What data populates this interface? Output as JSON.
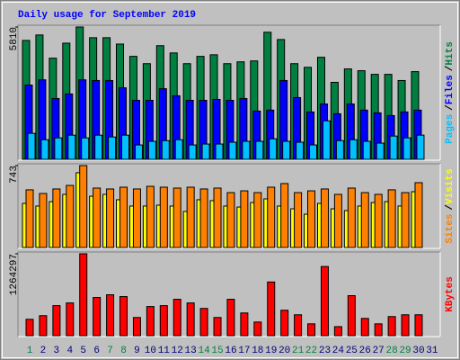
{
  "chart_data": [
    {
      "type": "bar",
      "title": "Daily usage for September 2019",
      "title_color": "#0000ff",
      "ylim": [
        0,
        5810
      ],
      "yticks": [
        5810
      ],
      "legend_separator": "/",
      "series": [
        {
          "name": "Hits",
          "color": "#008040",
          "values": [
            5220,
            5460,
            4440,
            5100,
            5810,
            5340,
            5340,
            5060,
            4520,
            4200,
            4990,
            4670,
            4200,
            4520,
            4590,
            4200,
            4280,
            4320,
            5580,
            5260,
            4200,
            4040,
            4480,
            3380,
            3970,
            3890,
            3730,
            3730,
            3460,
            3850,
            null
          ]
        },
        {
          "name": "Files",
          "color": "#0000ff",
          "values": [
            3260,
            3490,
            2670,
            2870,
            3490,
            3460,
            3460,
            3140,
            2590,
            2590,
            3100,
            2790,
            2590,
            2590,
            2630,
            2590,
            2670,
            2120,
            2160,
            3460,
            2710,
            2080,
            2430,
            2000,
            2430,
            2160,
            2040,
            1920,
            2080,
            2160,
            null
          ]
        },
        {
          "name": "Pages",
          "color": "#00c0ff",
          "values": [
            1140,
            860,
            940,
            1060,
            940,
            1060,
            980,
            1060,
            630,
            790,
            820,
            860,
            630,
            670,
            670,
            750,
            790,
            790,
            900,
            790,
            750,
            630,
            1690,
            820,
            860,
            790,
            710,
            1020,
            940,
            1060,
            null
          ]
        }
      ]
    },
    {
      "type": "bar",
      "ylim": [
        0,
        743
      ],
      "yticks": [
        743
      ],
      "legend_separator": "/",
      "series": [
        {
          "name": "Visits",
          "color": "#ffff00",
          "values": [
            400,
            376,
            416,
            482,
            678,
            465,
            482,
            433,
            376,
            376,
            384,
            376,
            327,
            433,
            425,
            376,
            367,
            408,
            441,
            376,
            351,
            302,
            400,
            351,
            335,
            376,
            408,
            416,
            376,
            506,
            null
          ]
        },
        {
          "name": "Sites",
          "color": "#ff8000",
          "values": [
            523,
            490,
            531,
            563,
            743,
            539,
            531,
            547,
            531,
            555,
            547,
            539,
            547,
            531,
            539,
            498,
            514,
            498,
            547,
            580,
            498,
            514,
            531,
            482,
            539,
            498,
            482,
            523,
            498,
            588,
            null
          ]
        }
      ]
    },
    {
      "type": "bar",
      "ylim": [
        0,
        1264297
      ],
      "yticks": [
        1264297
      ],
      "categories": [
        "1",
        "2",
        "3",
        "4",
        "5",
        "6",
        "7",
        "8",
        "9",
        "10",
        "11",
        "12",
        "13",
        "14",
        "15",
        "16",
        "17",
        "18",
        "19",
        "20",
        "21",
        "22",
        "23",
        "24",
        "25",
        "26",
        "27",
        "28",
        "29",
        "30",
        "31"
      ],
      "category_colors": [
        "#008040",
        "#000080",
        "#000080",
        "#000080",
        "#000080",
        "#000080",
        "#008040",
        "#008040",
        "#000080",
        "#000080",
        "#000080",
        "#000080",
        "#000080",
        "#008040",
        "#008040",
        "#000080",
        "#000080",
        "#000080",
        "#000080",
        "#000080",
        "#008040",
        "#008040",
        "#000080",
        "#000080",
        "#000080",
        "#000080",
        "#000080",
        "#008040",
        "#008040",
        "#000080",
        "#000080"
      ],
      "series": [
        {
          "name": "KBytes",
          "color": "#ff0000",
          "values": [
            253000,
            309000,
            464000,
            506000,
            1264297,
            590000,
            632000,
            604000,
            281000,
            450000,
            464000,
            562000,
            506000,
            421000,
            281000,
            562000,
            351000,
            211000,
            829000,
            393000,
            323000,
            183000,
            1068000,
            140000,
            618000,
            267000,
            183000,
            295000,
            323000,
            323000,
            null
          ]
        }
      ]
    }
  ]
}
